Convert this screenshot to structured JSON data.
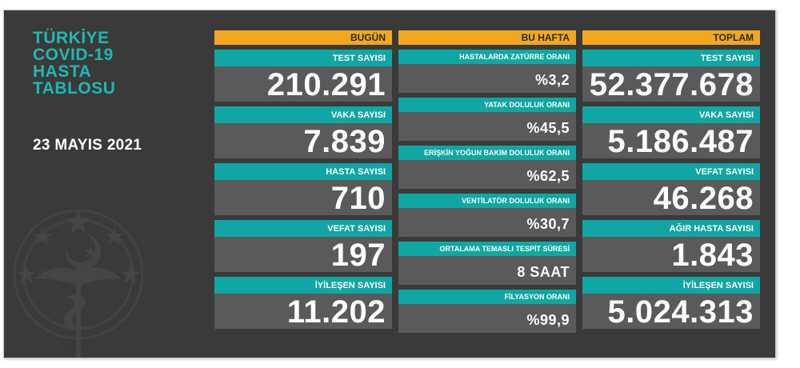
{
  "title_lines": [
    "TÜRKİYE",
    "COVID-19",
    "HASTA",
    "TABLOSU"
  ],
  "date": "23 MAYIS 2021",
  "colors": {
    "background": "#3a3a3a",
    "accent_teal": "#10a6a3",
    "header_orange": "#f4a71e",
    "title_teal": "#1db9b2",
    "value_bg": "#5a5a5a"
  },
  "emblem_icon": "ministry-of-health-emblem-icon",
  "today": {
    "header": "BUGÜN",
    "cards": [
      {
        "label": "TEST SAYISI",
        "value": "210.291"
      },
      {
        "label": "VAKA SAYISI",
        "value": "7.839"
      },
      {
        "label": "HASTA SAYISI",
        "value": "710"
      },
      {
        "label": "VEFAT SAYISI",
        "value": "197"
      },
      {
        "label": "İYİLEŞEN SAYISI",
        "value": "11.202"
      }
    ]
  },
  "week": {
    "header": "BU HAFTA",
    "cards": [
      {
        "label": "HASTALARDA ZATÜRRE ORANI",
        "value": "%3,2"
      },
      {
        "label": "YATAK DOLULUK ORANI",
        "value": "%45,5"
      },
      {
        "label": "ERİŞKİN YOĞUN BAKIM DOLULUK ORANI",
        "value": "%62,5"
      },
      {
        "label": "VENTİLATÖR DOLULUK ORANI",
        "value": "%30,7"
      },
      {
        "label": "ORTALAMA TEMASLI TESPİT SÜRESİ",
        "value": "8 SAAT"
      },
      {
        "label": "FİLYASYON ORANI",
        "value": "%99,9"
      }
    ]
  },
  "total": {
    "header": "TOPLAM",
    "cards": [
      {
        "label": "TEST SAYISI",
        "value": "52.377.678"
      },
      {
        "label": "VAKA SAYISI",
        "value": "5.186.487"
      },
      {
        "label": "VEFAT SAYISI",
        "value": "46.268"
      },
      {
        "label": "AĞIR HASTA SAYISI",
        "value": "1.843"
      },
      {
        "label": "İYİLEŞEN SAYISI",
        "value": "5.024.313"
      }
    ]
  }
}
